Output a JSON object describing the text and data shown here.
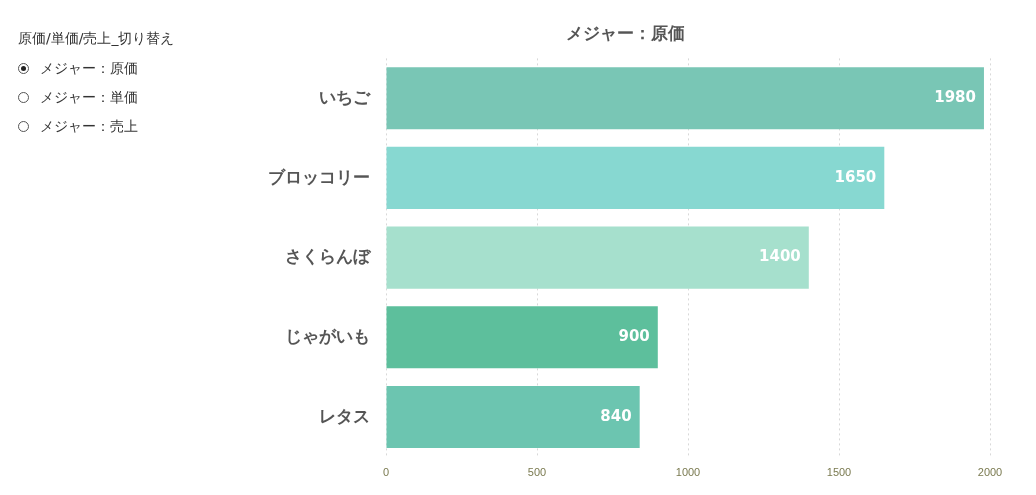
{
  "chart_data": [
    {
      "type": "bar",
      "orientation": "horizontal",
      "title": "メジャー：原価",
      "categories": [
        "いちご",
        "ブロッコリー",
        "さくらんぼ",
        "じゃがいも",
        "レタス"
      ],
      "values": [
        1980,
        1650,
        1400,
        900,
        840
      ],
      "colors": [
        "#79c6b5",
        "#87d8d1",
        "#a6e0cd",
        "#5dbf9c",
        "#6cc5b0"
      ],
      "xlim": [
        0,
        2000
      ],
      "xticks": [
        0,
        500,
        1000,
        1500,
        2000
      ],
      "grid": "x",
      "data_labels": true
    },
    {
      "type": "other",
      "title": "原価/単価/売上_切り替え",
      "annotations": [
        "メジャー：原価",
        "メジャー：単価",
        "メジャー：売上"
      ]
    }
  ]
}
